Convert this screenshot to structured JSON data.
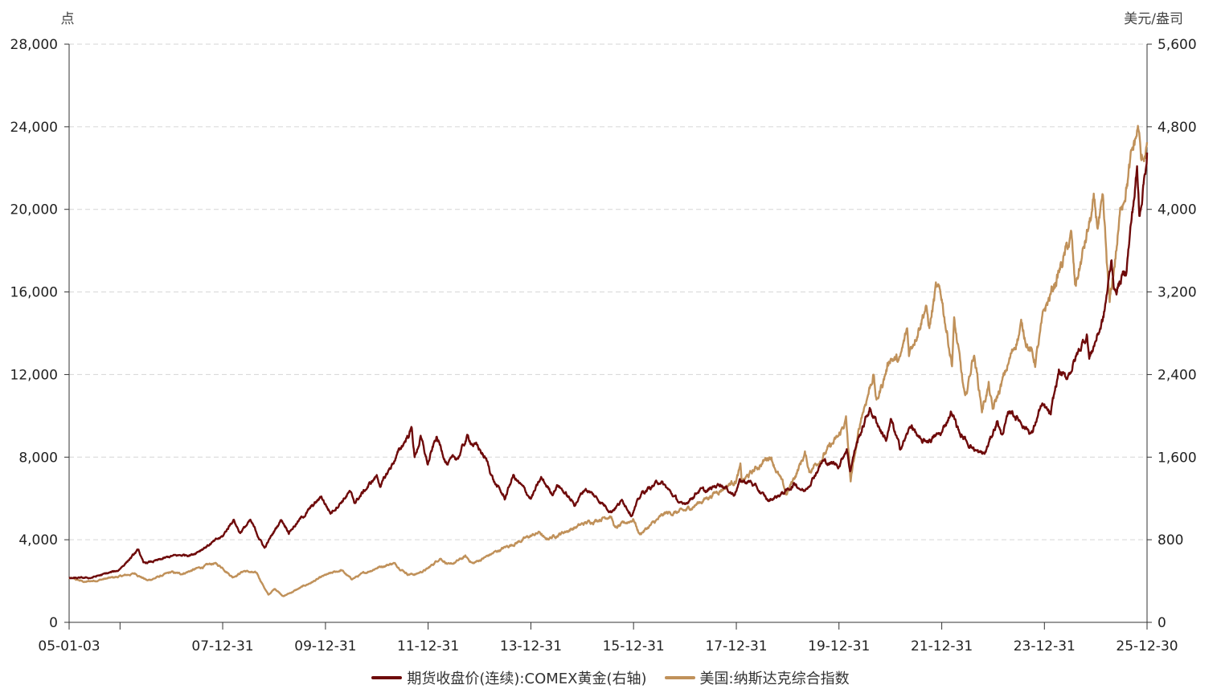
{
  "chart_data": {
    "type": "line",
    "left_axis": {
      "unit": "点",
      "ticks": [
        "0",
        "4,000",
        "8,000",
        "12,000",
        "16,000",
        "20,000",
        "24,000",
        "28,000"
      ],
      "ylim": [
        0,
        28000
      ]
    },
    "right_axis": {
      "unit": "美元/盎司",
      "ticks": [
        "0",
        "800",
        "1,600",
        "2,400",
        "3,200",
        "4,000",
        "4,800",
        "5,600"
      ],
      "ylim": [
        0,
        5600
      ]
    },
    "x_axis": {
      "ticks": [
        "05-01-03",
        "07-12-31",
        "09-12-31",
        "11-12-31",
        "13-12-31",
        "15-12-31",
        "17-12-31",
        "19-12-31",
        "21-12-31",
        "23-12-31",
        "25-12-30"
      ],
      "range": [
        "2005-01-03",
        "2025-12-30"
      ]
    },
    "grid": true,
    "legend_position": "bottom",
    "series": [
      {
        "name": "期货收盘价(连续):COMEX黄金(右轴)",
        "axis": "right",
        "color": "#6e0a0a",
        "points": [
          [
            "2005-01-03",
            425
          ],
          [
            "2005-06-01",
            430
          ],
          [
            "2005-12-15",
            500
          ],
          [
            "2006-05-12",
            700
          ],
          [
            "2006-06-15",
            570
          ],
          [
            "2006-10-01",
            600
          ],
          [
            "2007-01-01",
            640
          ],
          [
            "2007-06-01",
            660
          ],
          [
            "2007-12-31",
            830
          ],
          [
            "2008-03-17",
            1000
          ],
          [
            "2008-05-01",
            870
          ],
          [
            "2008-07-15",
            980
          ],
          [
            "2008-10-24",
            720
          ],
          [
            "2009-02-20",
            1000
          ],
          [
            "2009-04-15",
            880
          ],
          [
            "2009-12-02",
            1215
          ],
          [
            "2010-02-05",
            1060
          ],
          [
            "2010-06-20",
            1260
          ],
          [
            "2010-07-27",
            1160
          ],
          [
            "2010-12-31",
            1420
          ],
          [
            "2011-01-28",
            1320
          ],
          [
            "2011-05-01",
            1560
          ],
          [
            "2011-09-06",
            1880
          ],
          [
            "2011-09-26",
            1600
          ],
          [
            "2011-11-08",
            1790
          ],
          [
            "2011-12-29",
            1530
          ],
          [
            "2012-02-28",
            1790
          ],
          [
            "2012-05-16",
            1540
          ],
          [
            "2012-08-01",
            1600
          ],
          [
            "2012-10-04",
            1790
          ],
          [
            "2012-12-31",
            1675
          ],
          [
            "2013-02-20",
            1560
          ],
          [
            "2013-04-15",
            1360
          ],
          [
            "2013-06-28",
            1200
          ],
          [
            "2013-08-27",
            1420
          ],
          [
            "2013-12-31",
            1200
          ],
          [
            "2014-03-14",
            1390
          ],
          [
            "2014-06-01",
            1250
          ],
          [
            "2014-07-10",
            1340
          ],
          [
            "2014-11-05",
            1140
          ],
          [
            "2015-01-22",
            1300
          ],
          [
            "2015-07-24",
            1080
          ],
          [
            "2015-10-15",
            1180
          ],
          [
            "2015-12-17",
            1050
          ],
          [
            "2016-03-01",
            1250
          ],
          [
            "2016-07-06",
            1370
          ],
          [
            "2016-12-15",
            1125
          ],
          [
            "2017-04-15",
            1290
          ],
          [
            "2017-06-01",
            1260
          ],
          [
            "2017-09-08",
            1350
          ],
          [
            "2017-12-12",
            1240
          ],
          [
            "2018-01-25",
            1365
          ],
          [
            "2018-04-11",
            1360
          ],
          [
            "2018-08-16",
            1175
          ],
          [
            "2018-12-31",
            1280
          ],
          [
            "2019-02-20",
            1345
          ],
          [
            "2019-05-01",
            1270
          ],
          [
            "2019-09-04",
            1560
          ],
          [
            "2019-12-31",
            1520
          ],
          [
            "2020-02-24",
            1690
          ],
          [
            "2020-03-19",
            1475
          ],
          [
            "2020-05-01",
            1720
          ],
          [
            "2020-08-06",
            2070
          ],
          [
            "2020-11-30",
            1770
          ],
          [
            "2021-01-05",
            1950
          ],
          [
            "2021-03-08",
            1680
          ],
          [
            "2021-06-01",
            1910
          ],
          [
            "2021-08-09",
            1730
          ],
          [
            "2021-12-31",
            1830
          ],
          [
            "2022-03-08",
            2050
          ],
          [
            "2022-05-15",
            1810
          ],
          [
            "2022-09-28",
            1630
          ],
          [
            "2022-11-03",
            1630
          ],
          [
            "2023-02-01",
            1960
          ],
          [
            "2023-02-28",
            1810
          ],
          [
            "2023-05-04",
            2050
          ],
          [
            "2023-10-05",
            1830
          ],
          [
            "2023-12-04",
            2090
          ],
          [
            "2023-12-31",
            2070
          ],
          [
            "2024-02-14",
            2000
          ],
          [
            "2024-04-12",
            2430
          ],
          [
            "2024-06-01",
            2350
          ],
          [
            "2024-10-30",
            2800
          ],
          [
            "2024-11-14",
            2560
          ],
          [
            "2025-02-24",
            2950
          ],
          [
            "2025-04-22",
            3500
          ],
          [
            "2025-05-15",
            3200
          ],
          [
            "2025-08-01",
            3400
          ],
          [
            "2025-10-20",
            4380
          ],
          [
            "2025-11-05",
            3950
          ],
          [
            "2025-12-30",
            4550
          ]
        ]
      },
      {
        "name": "美国:纳斯达克综合指数",
        "axis": "left",
        "color": "#c0915a",
        "points": [
          [
            "2005-01-03",
            2150
          ],
          [
            "2005-04-28",
            1950
          ],
          [
            "2005-12-30",
            2220
          ],
          [
            "2006-04-19",
            2370
          ],
          [
            "2006-07-15",
            2020
          ],
          [
            "2006-12-31",
            2420
          ],
          [
            "2007-03-05",
            2340
          ],
          [
            "2007-10-31",
            2860
          ],
          [
            "2007-12-31",
            2650
          ],
          [
            "2008-03-10",
            2200
          ],
          [
            "2008-06-01",
            2500
          ],
          [
            "2008-09-01",
            2350
          ],
          [
            "2008-11-20",
            1320
          ],
          [
            "2009-01-06",
            1630
          ],
          [
            "2009-03-09",
            1270
          ],
          [
            "2009-12-31",
            2270
          ],
          [
            "2010-04-23",
            2530
          ],
          [
            "2010-07-02",
            2090
          ],
          [
            "2010-12-31",
            2650
          ],
          [
            "2011-04-29",
            2870
          ],
          [
            "2011-08-08",
            2350
          ],
          [
            "2011-10-04",
            2330
          ],
          [
            "2011-12-31",
            2600
          ],
          [
            "2012-03-26",
            3130
          ],
          [
            "2012-06-04",
            2750
          ],
          [
            "2012-09-21",
            3180
          ],
          [
            "2012-11-15",
            2850
          ],
          [
            "2013-05-21",
            3500
          ],
          [
            "2013-12-31",
            4180
          ],
          [
            "2014-03-05",
            4360
          ],
          [
            "2014-04-11",
            4000
          ],
          [
            "2014-12-31",
            4740
          ],
          [
            "2015-07-20",
            5200
          ],
          [
            "2015-08-24",
            4540
          ],
          [
            "2015-12-31",
            5010
          ],
          [
            "2016-02-11",
            4270
          ],
          [
            "2016-08-15",
            5260
          ],
          [
            "2016-12-30",
            5380
          ],
          [
            "2017-12-29",
            6900
          ],
          [
            "2018-01-29",
            7500
          ],
          [
            "2018-02-08",
            6780
          ],
          [
            "2018-08-30",
            8110
          ],
          [
            "2018-12-24",
            6190
          ],
          [
            "2019-05-03",
            8160
          ],
          [
            "2019-06-03",
            7330
          ],
          [
            "2019-12-31",
            8970
          ],
          [
            "2020-02-19",
            9820
          ],
          [
            "2020-03-23",
            6860
          ],
          [
            "2020-06-10",
            10020
          ],
          [
            "2020-09-02",
            12050
          ],
          [
            "2020-09-23",
            10630
          ],
          [
            "2020-12-31",
            12890
          ],
          [
            "2021-03-08",
            12610
          ],
          [
            "2021-04-29",
            14140
          ],
          [
            "2021-05-12",
            13030
          ],
          [
            "2021-09-07",
            15370
          ],
          [
            "2021-10-04",
            14260
          ],
          [
            "2021-11-19",
            16060
          ],
          [
            "2021-12-31",
            15640
          ],
          [
            "2022-03-14",
            12580
          ],
          [
            "2022-03-29",
            14620
          ],
          [
            "2022-06-16",
            10650
          ],
          [
            "2022-08-16",
            13100
          ],
          [
            "2022-10-13",
            10320
          ],
          [
            "2022-11-30",
            11470
          ],
          [
            "2022-12-28",
            10210
          ],
          [
            "2023-07-19",
            14360
          ],
          [
            "2023-10-26",
            12590
          ],
          [
            "2023-12-31",
            15010
          ],
          [
            "2024-07-10",
            18650
          ],
          [
            "2024-08-05",
            16200
          ],
          [
            "2024-12-16",
            20170
          ],
          [
            "2025-01-10",
            19160
          ],
          [
            "2025-02-19",
            20050
          ],
          [
            "2025-04-08",
            15270
          ],
          [
            "2025-07-01",
            20200
          ],
          [
            "2025-10-29",
            23950
          ],
          [
            "2025-11-20",
            22080
          ],
          [
            "2025-12-30",
            23250
          ]
        ]
      }
    ]
  }
}
